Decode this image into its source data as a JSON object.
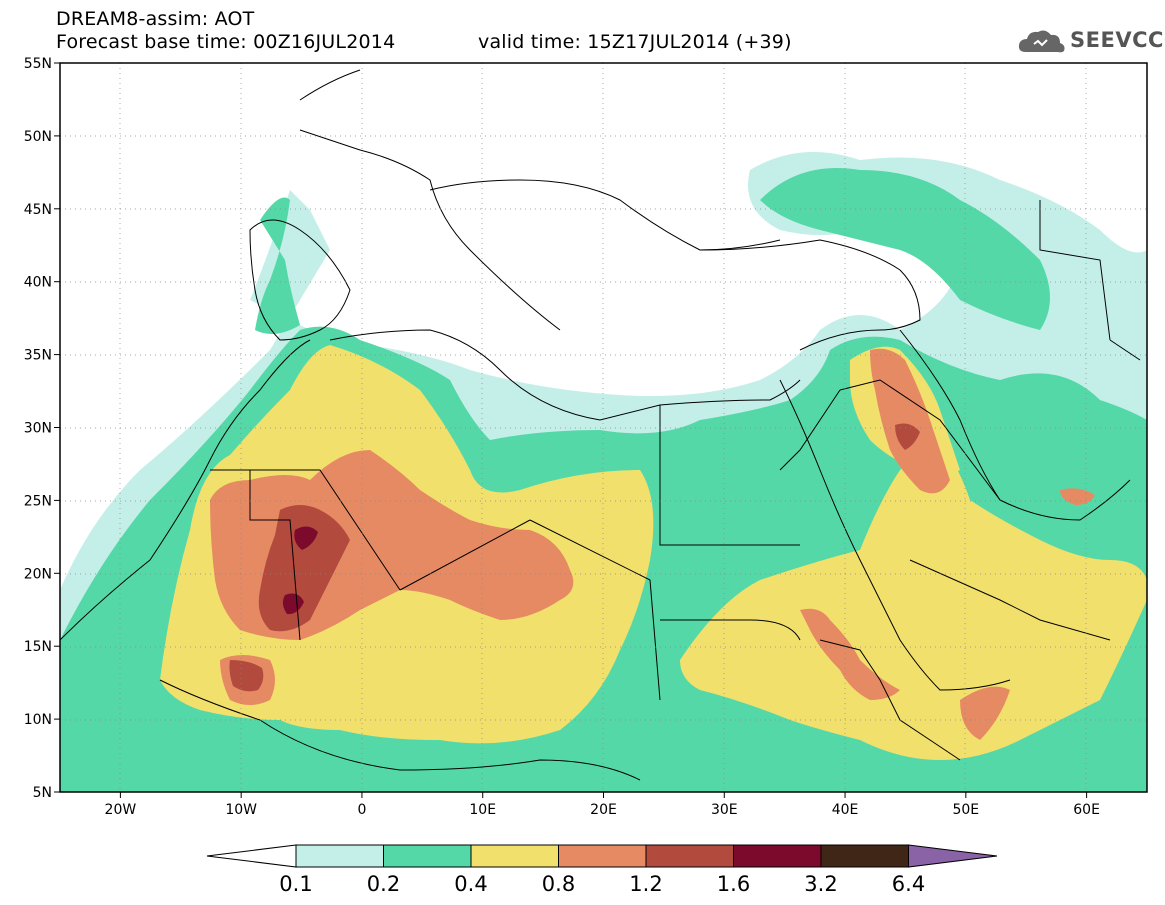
{
  "header": {
    "title": "DREAM8-assim: AOT",
    "base_time": "Forecast base time: 00Z16JUL2014",
    "valid_time": "valid time: 15Z17JUL2014 (+39)"
  },
  "logo": {
    "text": "SEEVCCC",
    "icon": "cloud-logo-icon"
  },
  "map": {
    "lon_range": [
      -25,
      65
    ],
    "lat_range": [
      5,
      55
    ],
    "lat_ticks": [
      "55N",
      "50N",
      "45N",
      "40N",
      "35N",
      "30N",
      "25N",
      "20N",
      "15N",
      "10N",
      "5N"
    ],
    "lon_ticks": [
      "20W",
      "10W",
      "0",
      "10E",
      "20E",
      "30E",
      "40E",
      "50E",
      "60E"
    ]
  },
  "colorbar": {
    "labels": [
      "0.1",
      "0.2",
      "0.4",
      "0.8",
      "1.2",
      "1.6",
      "3.2",
      "6.4"
    ],
    "colors": [
      "#ffffff",
      "#c4efe9",
      "#55d8a8",
      "#f2e06c",
      "#e68a64",
      "#b24a3e",
      "#7c0a2c",
      "#3f2616",
      "#8a62a6"
    ]
  },
  "fields": {
    "levels_colors": {
      "l1": "#c4efe9",
      "l2": "#55d8a8",
      "l3": "#f2e06c",
      "l4": "#e68a64",
      "l5": "#b24a3e",
      "l6": "#7c0a2c"
    }
  }
}
